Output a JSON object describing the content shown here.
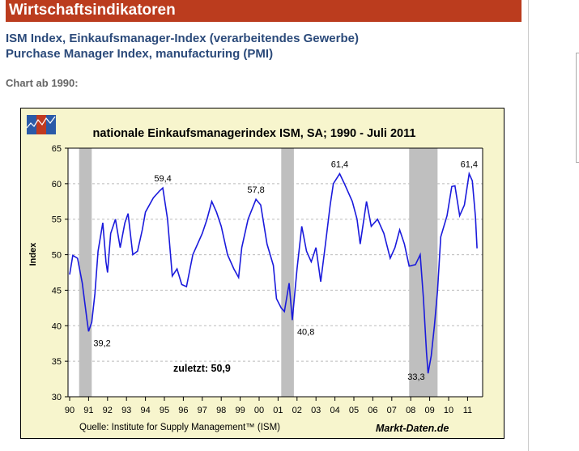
{
  "header": {
    "title": "Wirtschaftsindikatoren"
  },
  "subtitle_de": "ISM Index, Einkaufsmanager-Index (verarbeitendes Gewerbe)",
  "subtitle_en": "Purchase Manager Index, manufacturing (PMI)",
  "chart_intro": "Chart ab 1990:",
  "chart_data": {
    "type": "line",
    "title": "nationale Einkaufsmanagerindex ISM, SA; 1990 - Juli 2011",
    "ylabel": "Index",
    "xlabel": "",
    "ylim": [
      30,
      65
    ],
    "yticks": [
      30,
      35,
      40,
      45,
      50,
      55,
      60,
      65
    ],
    "xticks": [
      "90",
      "91",
      "92",
      "93",
      "94",
      "95",
      "96",
      "97",
      "98",
      "99",
      "00",
      "01",
      "02",
      "03",
      "04",
      "05",
      "06",
      "07",
      "08",
      "09",
      "10",
      "11"
    ],
    "grid": "horizontal dashed",
    "color": "#1a1adc",
    "recessions": [
      [
        "1990-07",
        "1991-03"
      ],
      [
        "2001-03",
        "2001-11"
      ],
      [
        "2007-12",
        "2009-06"
      ]
    ],
    "series": [
      {
        "points": [
          [
            "1990-01",
            47.2
          ],
          [
            "1990-03",
            49.9
          ],
          [
            "1990-06",
            49.5
          ],
          [
            "1990-09",
            46
          ],
          [
            "1990-12",
            40.8
          ],
          [
            "1991-01",
            39.2
          ],
          [
            "1991-03",
            40.5
          ],
          [
            "1991-05",
            44.5
          ],
          [
            "1991-07",
            50.5
          ],
          [
            "1991-10",
            54.5
          ],
          [
            "1991-12",
            49
          ],
          [
            "1992-01",
            47.5
          ],
          [
            "1992-03",
            53
          ],
          [
            "1992-06",
            55
          ],
          [
            "1992-09",
            51
          ],
          [
            "1992-12",
            54.5
          ],
          [
            "1993-02",
            55.8
          ],
          [
            "1993-05",
            50
          ],
          [
            "1993-08",
            50.5
          ],
          [
            "1993-11",
            53.5
          ],
          [
            "1994-01",
            56
          ],
          [
            "1994-06",
            58
          ],
          [
            "1994-10",
            59
          ],
          [
            "1994-12",
            59.4
          ],
          [
            "1995-03",
            55
          ],
          [
            "1995-06",
            47
          ],
          [
            "1995-09",
            48
          ],
          [
            "1995-12",
            45.8
          ],
          [
            "1996-03",
            45.5
          ],
          [
            "1996-07",
            50
          ],
          [
            "1996-10",
            51.5
          ],
          [
            "1997-01",
            53
          ],
          [
            "1997-04",
            55
          ],
          [
            "1997-07",
            57.5
          ],
          [
            "1997-10",
            56
          ],
          [
            "1998-01",
            54
          ],
          [
            "1998-05",
            50
          ],
          [
            "1998-09",
            48
          ],
          [
            "1998-12",
            46.8
          ],
          [
            "1999-02",
            51
          ],
          [
            "1999-06",
            55
          ],
          [
            "1999-11",
            57.8
          ],
          [
            "2000-02",
            57
          ],
          [
            "2000-06",
            51.5
          ],
          [
            "2000-10",
            48.5
          ],
          [
            "2000-12",
            43.8
          ],
          [
            "2001-03",
            42.5
          ],
          [
            "2001-05",
            42
          ],
          [
            "2001-08",
            46
          ],
          [
            "2001-10",
            40.8
          ],
          [
            "2002-01",
            48
          ],
          [
            "2002-04",
            54
          ],
          [
            "2002-07",
            50.5
          ],
          [
            "2002-10",
            49
          ],
          [
            "2003-01",
            51
          ],
          [
            "2003-04",
            46.2
          ],
          [
            "2003-07",
            51.5
          ],
          [
            "2003-10",
            57
          ],
          [
            "2003-12",
            60
          ],
          [
            "2004-04",
            61.4
          ],
          [
            "2004-07",
            60
          ],
          [
            "2004-12",
            57.5
          ],
          [
            "2005-03",
            55
          ],
          [
            "2005-05",
            51.5
          ],
          [
            "2005-09",
            57.5
          ],
          [
            "2005-12",
            54
          ],
          [
            "2006-04",
            55
          ],
          [
            "2006-08",
            53
          ],
          [
            "2006-12",
            49.5
          ],
          [
            "2007-03",
            51
          ],
          [
            "2007-06",
            53.5
          ],
          [
            "2007-09",
            51.5
          ],
          [
            "2007-12",
            48.4
          ],
          [
            "2008-04",
            48.6
          ],
          [
            "2008-07",
            50
          ],
          [
            "2008-09",
            44
          ],
          [
            "2008-11",
            36.2
          ],
          [
            "2008-12",
            33.3
          ],
          [
            "2009-02",
            35.8
          ],
          [
            "2009-04",
            40
          ],
          [
            "2009-06",
            45
          ],
          [
            "2009-08",
            52.5
          ],
          [
            "2009-12",
            55.5
          ],
          [
            "2010-03",
            59.6
          ],
          [
            "2010-05",
            59.7
          ],
          [
            "2010-08",
            55.5
          ],
          [
            "2010-11",
            57
          ],
          [
            "2011-02",
            61.4
          ],
          [
            "2011-04",
            60.4
          ],
          [
            "2011-06",
            55.3
          ],
          [
            "2011-07",
            50.9
          ]
        ]
      }
    ],
    "annotations": [
      {
        "text": "39,2",
        "x": "1991-01",
        "y": 39.2,
        "pos": "below-right"
      },
      {
        "text": "59,4",
        "x": "1994-12",
        "y": 59.4,
        "pos": "above"
      },
      {
        "text": "57,8",
        "x": "1999-11",
        "y": 57.8,
        "pos": "above"
      },
      {
        "text": "40,8",
        "x": "2001-10",
        "y": 40.8,
        "pos": "below-right"
      },
      {
        "text": "61,4",
        "x": "2004-04",
        "y": 61.4,
        "pos": "above"
      },
      {
        "text": "33,3",
        "x": "2008-12",
        "y": 33.3,
        "pos": "left"
      },
      {
        "text": "61,4",
        "x": "2011-02",
        "y": 61.4,
        "pos": "above"
      }
    ],
    "last_value_label": "zuletzt: 50,9",
    "source": "Quelle: Institute for Supply Management™ (ISM)",
    "brand": "Markt-Daten.de"
  }
}
